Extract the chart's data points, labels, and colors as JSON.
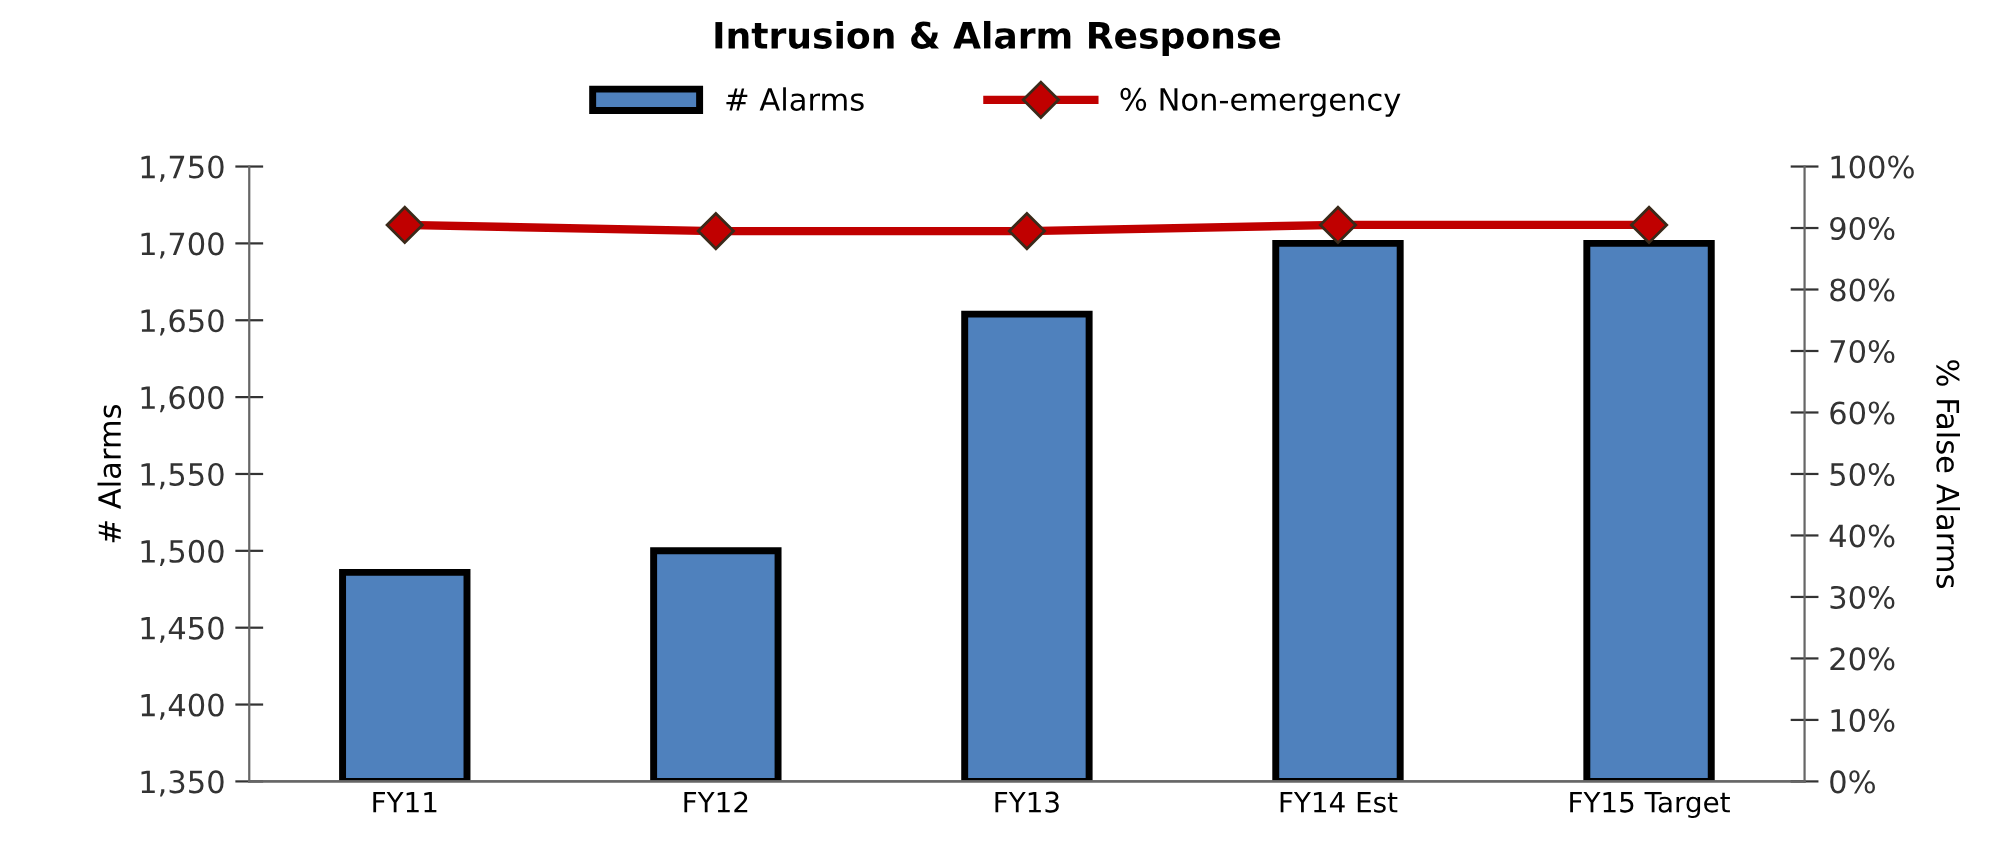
{
  "chart_data": {
    "type": "bar",
    "title": "Intrusion & Alarm Response",
    "ylabel": "# Alarms",
    "y2label": "% False Alarms",
    "categories": [
      "FY11",
      "FY12",
      "FY13",
      "FY14 Est",
      "FY15 Target"
    ],
    "series": [
      {
        "name": "# Alarms",
        "color": "#4f81bd",
        "values": [
          1486,
          1500,
          1654,
          1700,
          1700
        ]
      },
      {
        "name": "% Non-emergency",
        "type": "line",
        "axis": "y2",
        "color": "#c00000",
        "marker": "diamond",
        "values": [
          90.5,
          89.5,
          89.5,
          90.5,
          90.5
        ]
      }
    ],
    "ylim": [
      1350,
      1750
    ],
    "yticks": [
      {
        "value": 1350,
        "label": "1,350"
      },
      {
        "value": 1400,
        "label": "1,400"
      },
      {
        "value": 1450,
        "label": "1,450"
      },
      {
        "value": 1500,
        "label": "1,500"
      },
      {
        "value": 1550,
        "label": "1,550"
      },
      {
        "value": 1600,
        "label": "1,600"
      },
      {
        "value": 1650,
        "label": "1,650"
      },
      {
        "value": 1700,
        "label": "1,700"
      },
      {
        "value": 1750,
        "label": "1,750"
      }
    ],
    "y2lim": [
      0,
      100
    ],
    "y2ticks": [
      {
        "value": 0,
        "label": "0%"
      },
      {
        "value": 10,
        "label": "10%"
      },
      {
        "value": 20,
        "label": "20%"
      },
      {
        "value": 30,
        "label": "30%"
      },
      {
        "value": 40,
        "label": "40%"
      },
      {
        "value": 50,
        "label": "50%"
      },
      {
        "value": 60,
        "label": "60%"
      },
      {
        "value": 70,
        "label": "70%"
      },
      {
        "value": 80,
        "label": "80%"
      },
      {
        "value": 90,
        "label": "90%"
      },
      {
        "value": 100,
        "label": "100%"
      }
    ],
    "legend": "top",
    "grid": false
  }
}
